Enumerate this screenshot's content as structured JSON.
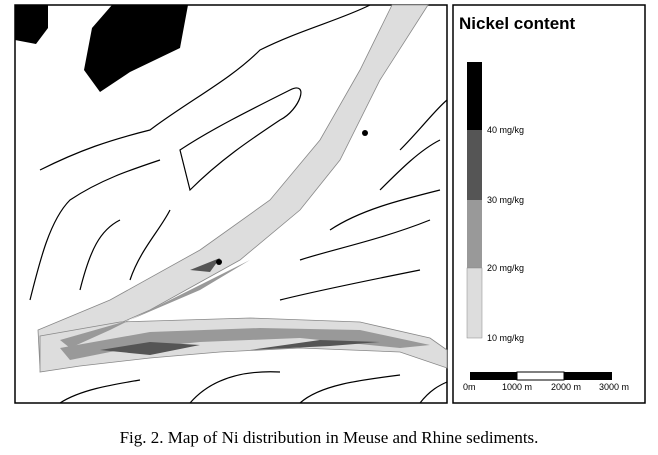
{
  "legend": {
    "title": "Nickel content",
    "labels": [
      "40 mg/kg",
      "30 mg/kg",
      "20 mg/kg",
      "10 mg/kg"
    ]
  },
  "scale_bar": {
    "labels": [
      "0m",
      "1000 m",
      "2000 m",
      "3000 m"
    ]
  },
  "caption": "Fig. 2.  Map of Ni distribution in Meuse and Rhine sediments."
}
